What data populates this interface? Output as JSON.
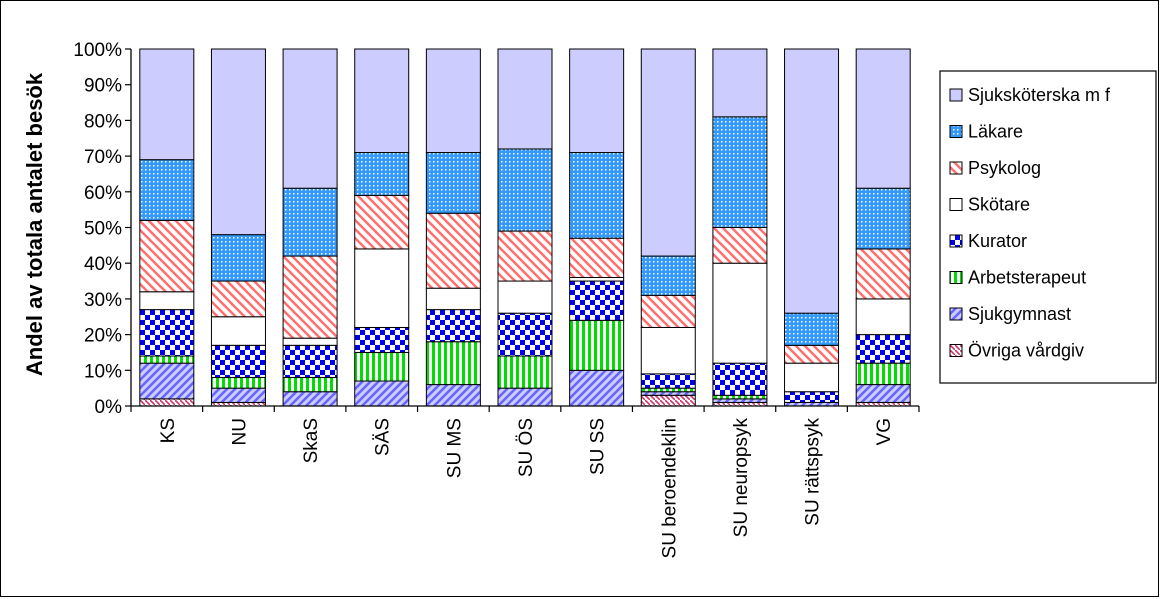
{
  "chart_data": {
    "type": "bar",
    "stacked": "percent",
    "title": "",
    "xlabel": "",
    "ylabel": "Andel av totala antalet besök",
    "ylim": [
      0,
      100
    ],
    "yticks": [
      "0%",
      "10%",
      "20%",
      "30%",
      "40%",
      "50%",
      "60%",
      "70%",
      "80%",
      "90%",
      "100%"
    ],
    "grid": false,
    "legend_position": "right",
    "categories": [
      "KS",
      "NU",
      "SkaS",
      "SÄS",
      "SU MS",
      "SU ÖS",
      "SU SS",
      "SU beroendeklin",
      "SU neuropsyk",
      "SU rättspsyk",
      "VG"
    ],
    "series": [
      {
        "name": "Övriga vårdgiv",
        "color": "#ff8080",
        "pattern": "diag-sparse",
        "values": [
          2,
          1,
          0,
          0,
          0,
          0,
          0,
          3,
          1,
          0,
          1
        ]
      },
      {
        "name": "Sjukgymnast",
        "color": "#9999ff",
        "pattern": "diag-blue",
        "values": [
          10,
          4,
          4,
          7,
          6,
          5,
          10,
          1,
          1,
          1,
          5
        ]
      },
      {
        "name": "Arbetsterapeut",
        "color": "#00cc00",
        "pattern": "vstripe",
        "values": [
          2,
          3,
          4,
          8,
          12,
          9,
          14,
          1,
          1,
          0,
          6
        ]
      },
      {
        "name": "Kurator",
        "color": "#0000ff",
        "pattern": "checker",
        "values": [
          13,
          9,
          9,
          7,
          9,
          12,
          11,
          4,
          9,
          3,
          8
        ]
      },
      {
        "name": "Skötare",
        "color": "#ffffff",
        "pattern": "none",
        "values": [
          5,
          8,
          2,
          22,
          6,
          9,
          1,
          13,
          28,
          8,
          10
        ]
      },
      {
        "name": "Psykolog",
        "color": "#ff8080",
        "pattern": "diag-red",
        "values": [
          20,
          10,
          23,
          15,
          21,
          14,
          11,
          9,
          10,
          5,
          14
        ]
      },
      {
        "name": "Läkare",
        "color": "#3399ff",
        "pattern": "dots",
        "values": [
          17,
          13,
          19,
          12,
          17,
          23,
          24,
          11,
          31,
          9,
          17
        ]
      },
      {
        "name": "Sjuksköterska m f",
        "color": "#ccccff",
        "pattern": "none",
        "values": [
          31,
          52,
          39,
          29,
          29,
          28,
          29,
          58,
          19,
          74,
          39
        ]
      }
    ],
    "legend_order": [
      "Sjuksköterska m f",
      "Läkare",
      "Psykolog",
      "Skötare",
      "Kurator",
      "Arbetsterapeut",
      "Sjukgymnast",
      "Övriga vårdgiv"
    ]
  }
}
